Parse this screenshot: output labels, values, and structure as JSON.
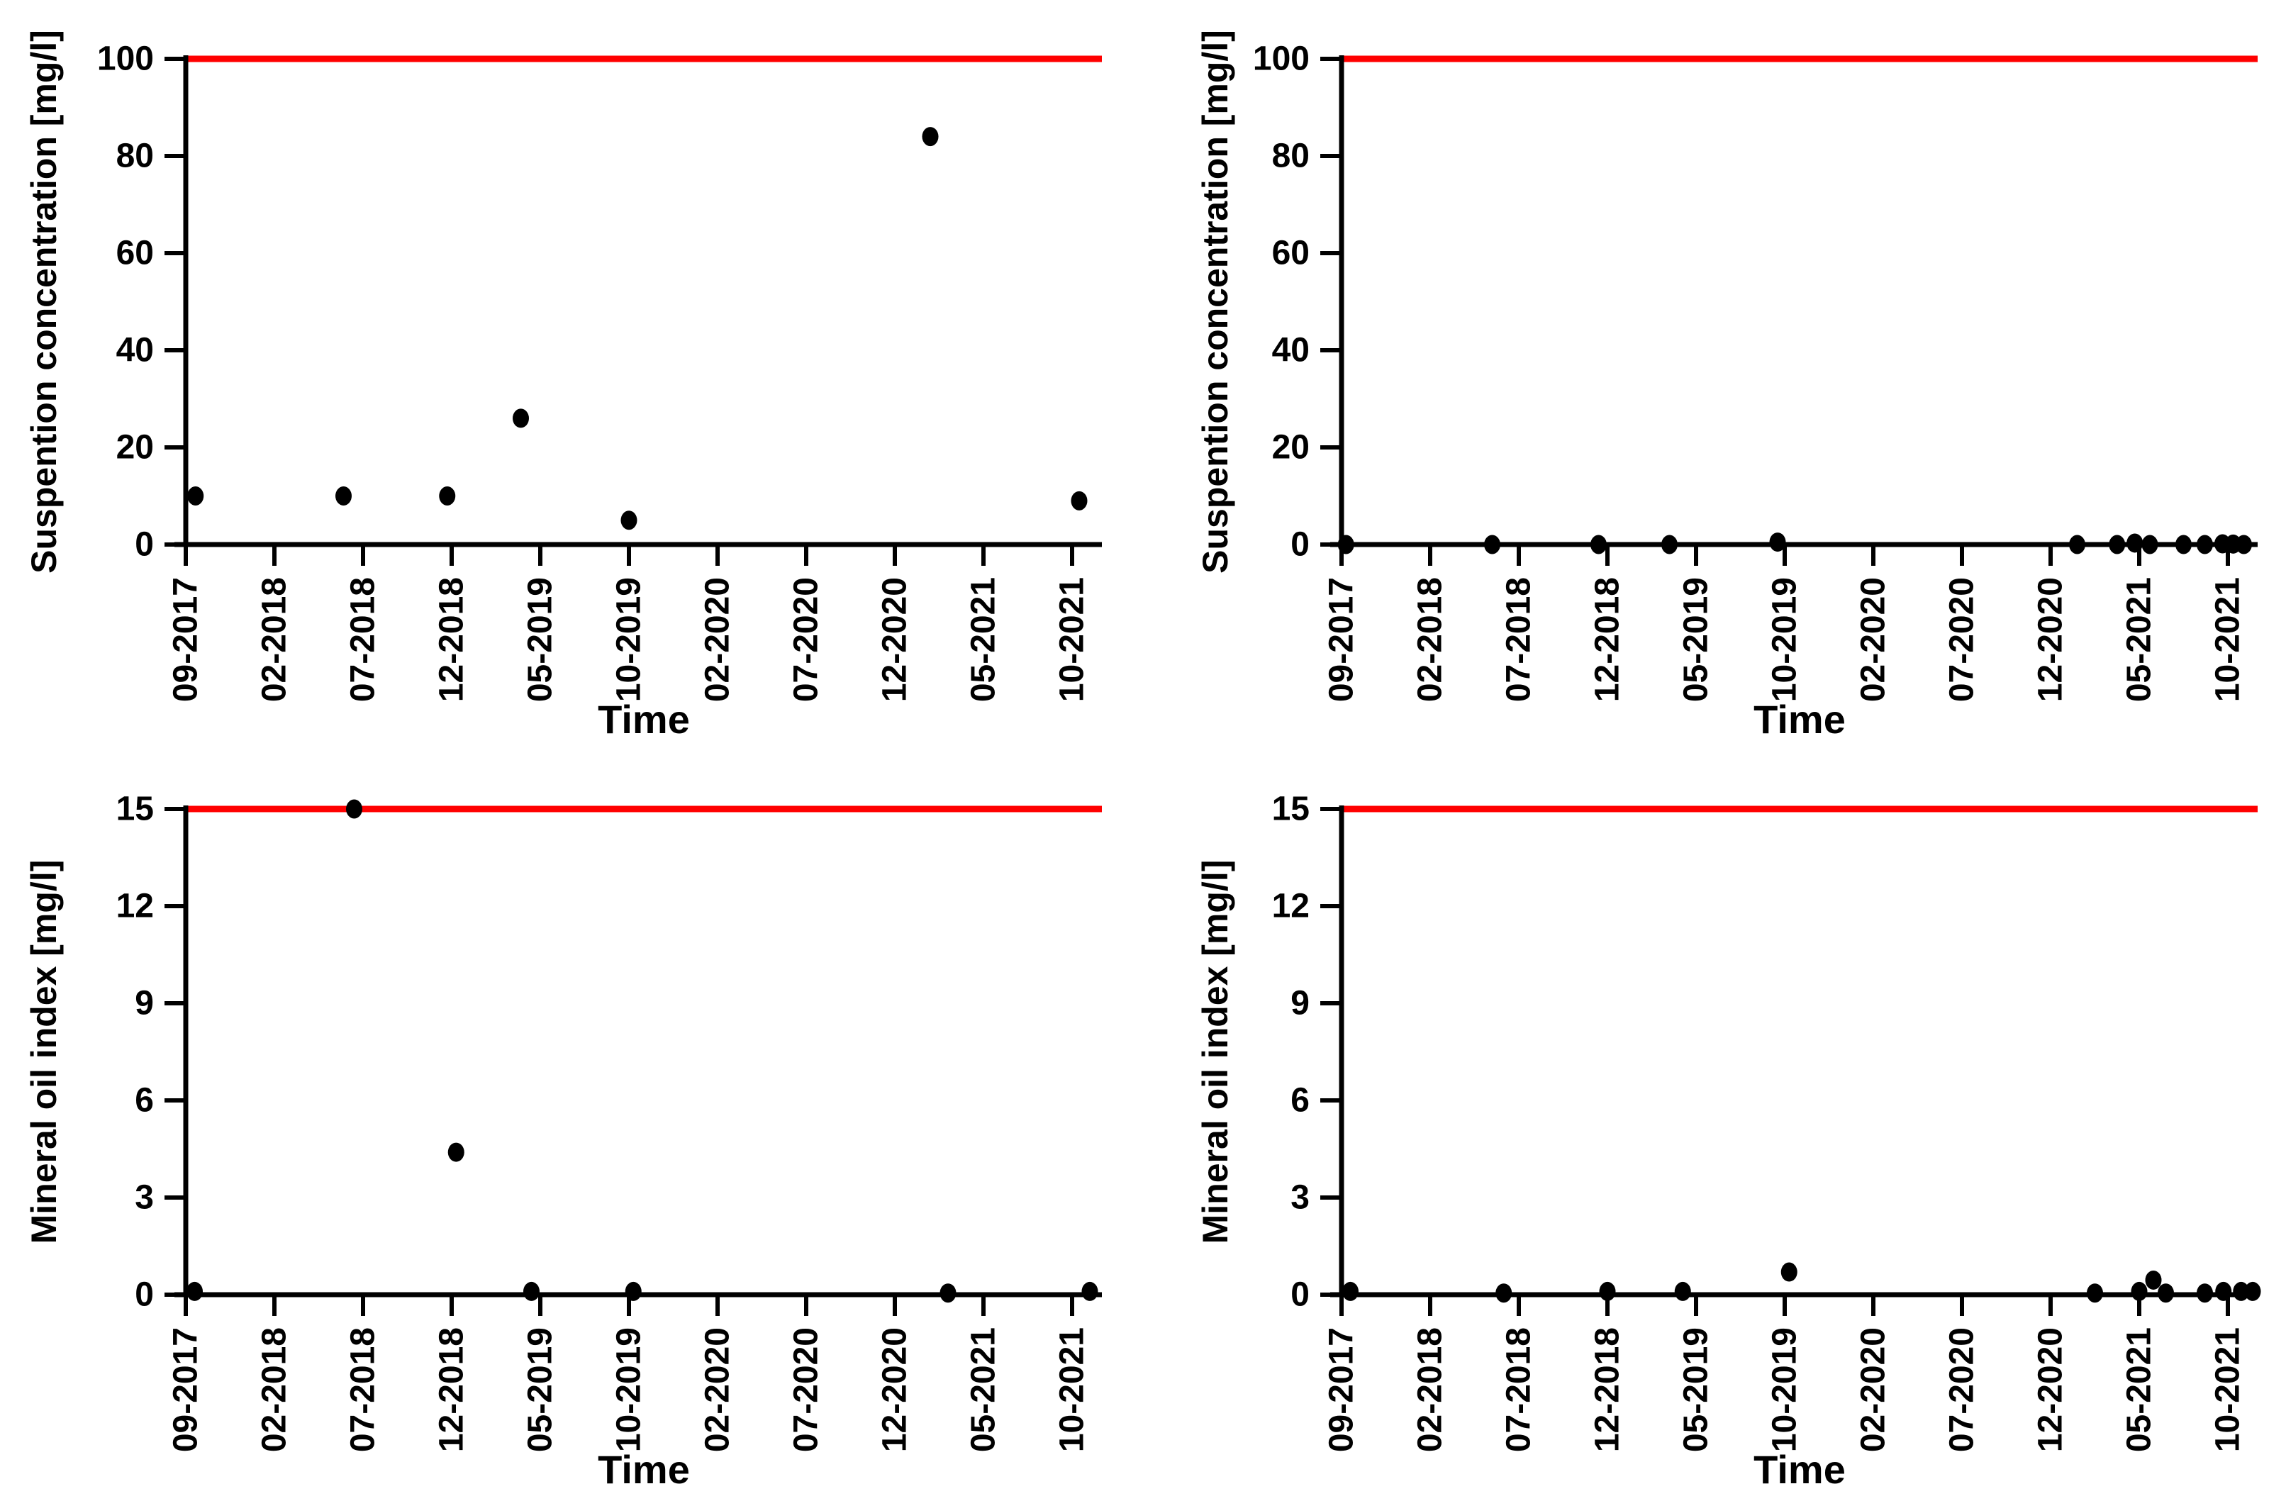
{
  "figure": {
    "background": "#ffffff",
    "limit_line_color": "#ff0000",
    "point_color": "#000000",
    "axis_color": "#000000",
    "x_axis_label": "Time",
    "x_tick_labels": [
      "09-2017",
      "02-2018",
      "07-2018",
      "12-2018",
      "05-2019",
      "10-2019",
      "02-2020",
      "07-2020",
      "12-2020",
      "05-2021",
      "10-2021"
    ]
  },
  "chart_data": [
    {
      "id": "suspension-concentration-left",
      "type": "scatter",
      "title": "",
      "ylabel": "Suspention concentration [mg/l]",
      "xlabel": "Time",
      "ylim": [
        0,
        100
      ],
      "yticks": [
        0,
        20,
        40,
        60,
        80,
        100
      ],
      "x_units": "tick_index",
      "x_tick_labels": [
        "09-2017",
        "02-2018",
        "07-2018",
        "12-2018",
        "05-2019",
        "10-2019",
        "02-2020",
        "07-2020",
        "12-2020",
        "05-2021",
        "10-2021"
      ],
      "limit_line": {
        "y": 100,
        "color": "#ff0000"
      },
      "point_color": "#000000",
      "grid": false,
      "legend": false,
      "points": [
        {
          "x": 0.11,
          "y": 10
        },
        {
          "x": 1.78,
          "y": 10
        },
        {
          "x": 2.95,
          "y": 10
        },
        {
          "x": 3.78,
          "y": 26
        },
        {
          "x": 5.0,
          "y": 5
        },
        {
          "x": 8.4,
          "y": 84
        },
        {
          "x": 10.08,
          "y": 9
        }
      ]
    },
    {
      "id": "suspension-concentration-right",
      "type": "scatter",
      "title": "",
      "ylabel": "Suspention concentration [mg/l]",
      "xlabel": "Time",
      "ylim": [
        0,
        100
      ],
      "yticks": [
        0,
        20,
        40,
        60,
        80,
        100
      ],
      "x_units": "tick_index",
      "x_tick_labels": [
        "09-2017",
        "02-2018",
        "07-2018",
        "12-2018",
        "05-2019",
        "10-2019",
        "02-2020",
        "07-2020",
        "12-2020",
        "05-2021",
        "10-2021"
      ],
      "limit_line": {
        "y": 100,
        "color": "#ff0000"
      },
      "point_color": "#000000",
      "grid": false,
      "legend": false,
      "points": [
        {
          "x": 0.05,
          "y": 0
        },
        {
          "x": 1.7,
          "y": 0
        },
        {
          "x": 2.9,
          "y": 0
        },
        {
          "x": 3.7,
          "y": 0
        },
        {
          "x": 4.92,
          "y": 0.5
        },
        {
          "x": 8.3,
          "y": 0
        },
        {
          "x": 8.75,
          "y": 0
        },
        {
          "x": 8.95,
          "y": 0.3
        },
        {
          "x": 9.12,
          "y": 0
        },
        {
          "x": 9.5,
          "y": 0
        },
        {
          "x": 9.74,
          "y": 0
        },
        {
          "x": 9.94,
          "y": 0.15
        },
        {
          "x": 10.06,
          "y": 0.1
        },
        {
          "x": 10.18,
          "y": 0
        }
      ]
    },
    {
      "id": "mineral-oil-index-left",
      "type": "scatter",
      "title": "",
      "ylabel": "Mineral oil index [mg/l]",
      "xlabel": "Time",
      "ylim": [
        0,
        15
      ],
      "yticks": [
        0,
        3,
        6,
        9,
        12,
        15
      ],
      "x_units": "tick_index",
      "x_tick_labels": [
        "09-2017",
        "02-2018",
        "07-2018",
        "12-2018",
        "05-2019",
        "10-2019",
        "02-2020",
        "07-2020",
        "12-2020",
        "05-2021",
        "10-2021"
      ],
      "limit_line": {
        "y": 15,
        "color": "#ff0000"
      },
      "point_color": "#000000",
      "grid": false,
      "legend": false,
      "points": [
        {
          "x": 0.1,
          "y": 0.1
        },
        {
          "x": 1.9,
          "y": 15
        },
        {
          "x": 3.05,
          "y": 4.4
        },
        {
          "x": 3.9,
          "y": 0.1
        },
        {
          "x": 5.05,
          "y": 0.1
        },
        {
          "x": 8.6,
          "y": 0.05
        },
        {
          "x": 10.2,
          "y": 0.1
        }
      ]
    },
    {
      "id": "mineral-oil-index-right",
      "type": "scatter",
      "title": "",
      "ylabel": "Mineral oil index [mg/l]",
      "xlabel": "Time",
      "ylim": [
        0,
        15
      ],
      "yticks": [
        0,
        3,
        6,
        9,
        12,
        15
      ],
      "x_units": "tick_index",
      "x_tick_labels": [
        "09-2017",
        "02-2018",
        "07-2018",
        "12-2018",
        "05-2019",
        "10-2019",
        "02-2020",
        "07-2020",
        "12-2020",
        "05-2021",
        "10-2021"
      ],
      "limit_line": {
        "y": 15,
        "color": "#ff0000"
      },
      "point_color": "#000000",
      "grid": false,
      "legend": false,
      "points": [
        {
          "x": 0.1,
          "y": 0.1
        },
        {
          "x": 1.83,
          "y": 0.05
        },
        {
          "x": 3.0,
          "y": 0.1
        },
        {
          "x": 3.85,
          "y": 0.1
        },
        {
          "x": 5.05,
          "y": 0.7
        },
        {
          "x": 8.5,
          "y": 0.05
        },
        {
          "x": 9.0,
          "y": 0.1
        },
        {
          "x": 9.16,
          "y": 0.45
        },
        {
          "x": 9.3,
          "y": 0.05
        },
        {
          "x": 9.74,
          "y": 0.05
        },
        {
          "x": 9.95,
          "y": 0.1
        },
        {
          "x": 10.15,
          "y": 0.1
        },
        {
          "x": 10.28,
          "y": 0.1
        }
      ]
    }
  ]
}
